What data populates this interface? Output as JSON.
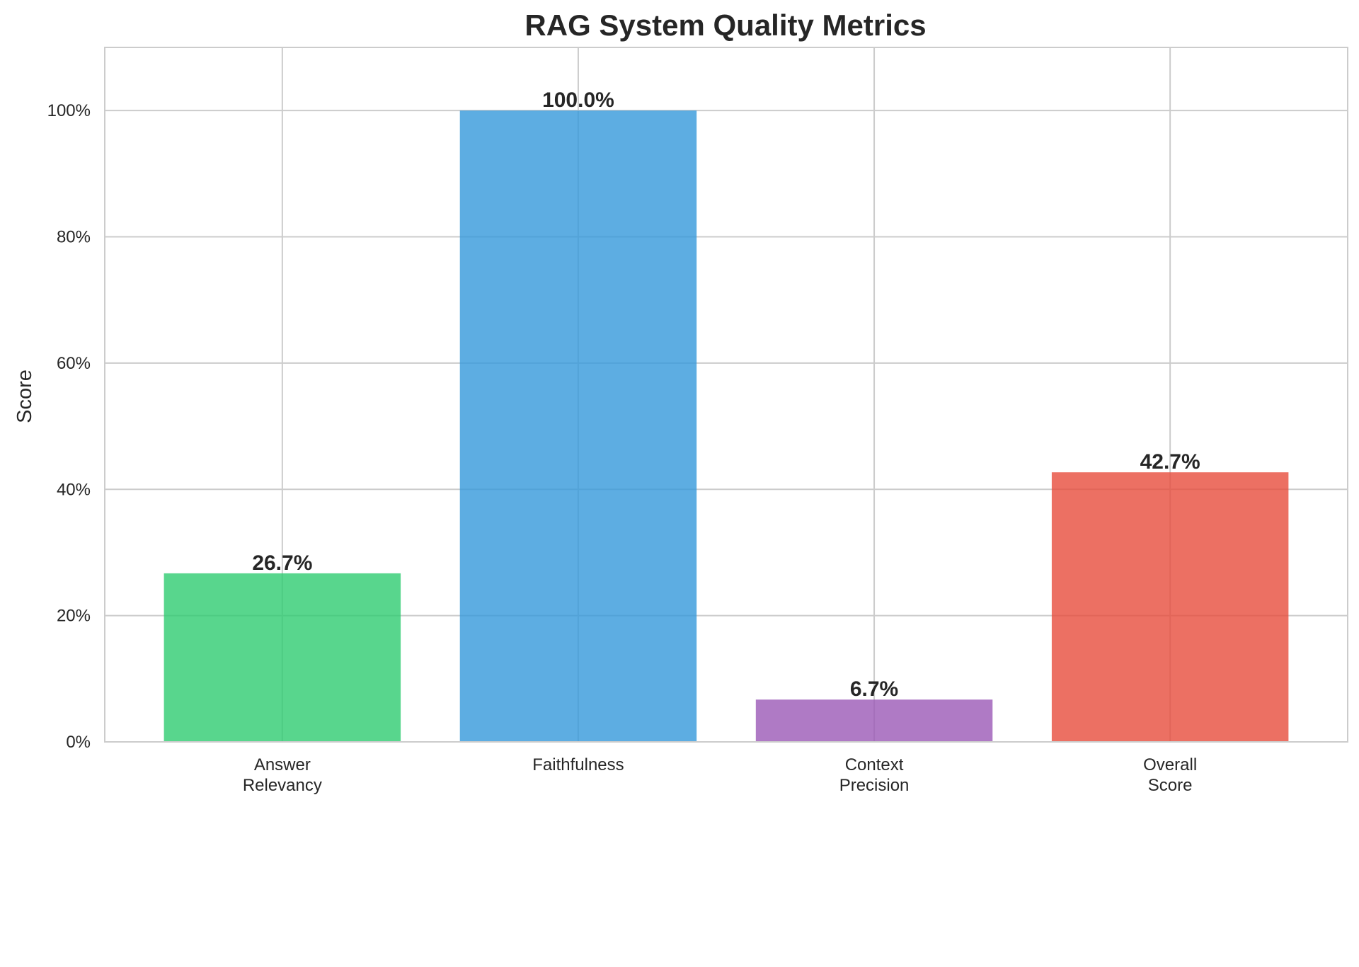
{
  "chart_data": {
    "type": "bar",
    "title": "RAG System Quality Metrics",
    "xlabel": "",
    "ylabel": "Score",
    "ylim": [
      0,
      1.1
    ],
    "yticks": [
      0,
      0.2,
      0.4,
      0.6,
      0.8,
      1.0
    ],
    "ytick_labels": [
      "0%",
      "20%",
      "40%",
      "60%",
      "80%",
      "100%"
    ],
    "categories": [
      [
        "Answer",
        "Relevancy"
      ],
      [
        "Faithfulness"
      ],
      [
        "Context",
        "Precision"
      ],
      [
        "Overall",
        "Score"
      ]
    ],
    "values": [
      0.267,
      1.0,
      0.067,
      0.427
    ],
    "value_labels": [
      "26.7%",
      "100.0%",
      "6.7%",
      "42.7%"
    ],
    "colors": [
      "#2ecc71",
      "#3498db",
      "#9b59b6",
      "#e74c3c"
    ],
    "grid": true,
    "legend": "none"
  }
}
